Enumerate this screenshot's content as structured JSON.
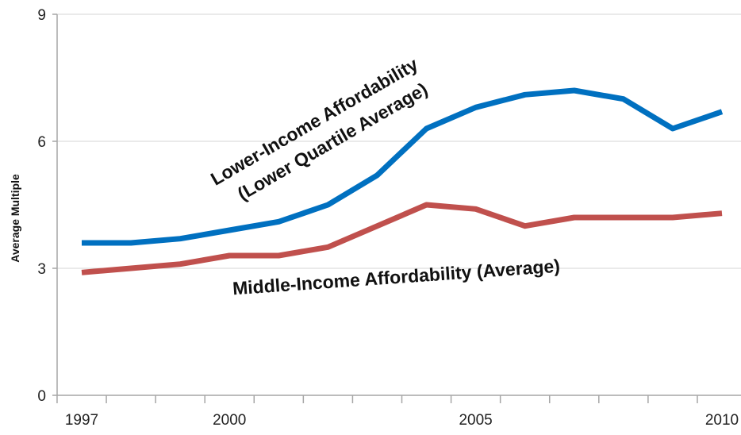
{
  "chart_data": {
    "type": "line",
    "title": "",
    "xlabel": "",
    "ylabel": "Average Multiple",
    "x": [
      1997,
      1998,
      1999,
      2000,
      2001,
      2002,
      2003,
      2004,
      2005,
      2006,
      2007,
      2008,
      2009,
      2010
    ],
    "xlim": [
      1997,
      2010
    ],
    "x_tick_labels": [
      "1997",
      "2000",
      "2005",
      "2010"
    ],
    "ylim": [
      0,
      9
    ],
    "y_tick_labels": [
      "0",
      "3",
      "6",
      "9"
    ],
    "grid": "horizontal",
    "series": [
      {
        "name": "Lower-Income Affordability (Lower Quartile Average)",
        "color": "#0070c0",
        "values": [
          3.6,
          3.6,
          3.7,
          3.9,
          4.1,
          4.5,
          5.2,
          6.3,
          6.8,
          7.1,
          7.2,
          7.0,
          6.3,
          6.7
        ]
      },
      {
        "name": "Middle-Income Affordability (Average)",
        "color": "#c0504d",
        "values": [
          2.9,
          3.0,
          3.1,
          3.3,
          3.3,
          3.5,
          4.0,
          4.5,
          4.4,
          4.0,
          4.2,
          4.2,
          4.2,
          4.3
        ]
      }
    ],
    "annotations": {
      "lower_line1": "Lower-Income Affordability",
      "lower_line2": "(Lower Quartile Average)",
      "middle": "Middle-Income Affordability (Average)"
    }
  }
}
